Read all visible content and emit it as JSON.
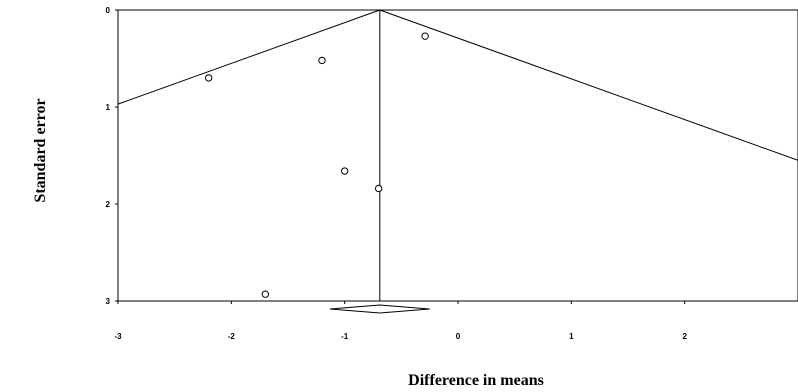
{
  "chart_data": {
    "type": "scatter",
    "title": "",
    "xlabel": "Difference in means",
    "ylabel": "Standard error",
    "xlim": [
      -3,
      3
    ],
    "ylim": [
      0,
      3
    ],
    "y_inverted": true,
    "x_ticks": [
      -3,
      -2,
      -1,
      0,
      1,
      2
    ],
    "y_ticks": [
      0,
      1,
      2,
      3
    ],
    "x_tick_labels": [
      "-3",
      "-2",
      "-1",
      "0",
      "1",
      "2"
    ],
    "y_tick_labels": [
      "0",
      "1",
      "2",
      "3"
    ],
    "pooled_estimate": -0.69,
    "summary_diamond": {
      "center": -0.69,
      "lower": -1.13,
      "upper": -0.25
    },
    "funnel_slope_se_per_unit": 0.42,
    "points": [
      {
        "x": -0.29,
        "y": 0.27
      },
      {
        "x": -2.2,
        "y": 0.7
      },
      {
        "x": -1.2,
        "y": 0.52
      },
      {
        "x": -1.0,
        "y": 1.66
      },
      {
        "x": -0.7,
        "y": 1.84
      },
      {
        "x": -1.7,
        "y": 2.93
      }
    ],
    "grid": false,
    "legend": "none"
  }
}
